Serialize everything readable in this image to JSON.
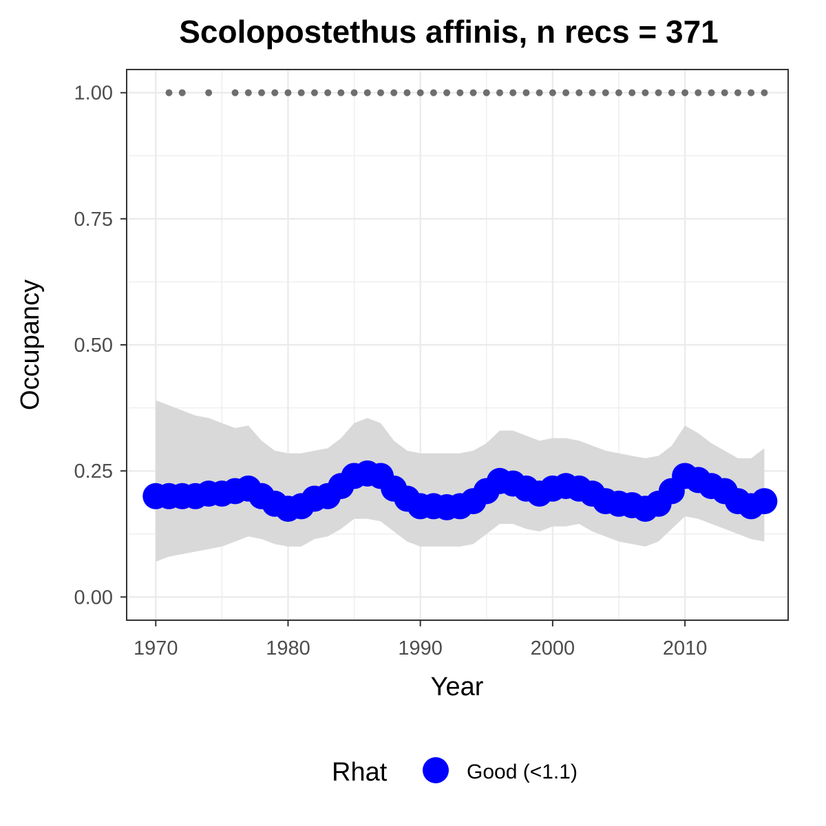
{
  "chart_data": {
    "type": "line",
    "title": "Scolopostethus affinis, n recs = 371",
    "xlabel": "Year",
    "ylabel": "Occupancy",
    "xlim": [
      1967.8,
      2017.8
    ],
    "ylim": [
      -0.046,
      1.046
    ],
    "x_ticks": [
      1970,
      1980,
      1990,
      2000,
      2010
    ],
    "x_tick_labels": [
      "1970",
      "1980",
      "1990",
      "2000",
      "2010"
    ],
    "y_ticks": [
      0,
      0.25,
      0.5,
      0.75,
      1.0
    ],
    "y_tick_labels": [
      "0.00",
      "0.25",
      "0.50",
      "0.75",
      "1.00"
    ],
    "grid": true,
    "legend": {
      "position": "bottom",
      "title": "Rhat",
      "entries": [
        {
          "label": "Good (<1.1)",
          "color": "#0000ff"
        }
      ]
    },
    "colors": {
      "series": "#0000ff",
      "ribbon": "#d9d9d9",
      "record_points": "#6e6e6e",
      "grid": "#ebebeb",
      "panel_border": "#333333"
    },
    "x": [
      1970,
      1971,
      1972,
      1973,
      1974,
      1975,
      1976,
      1977,
      1978,
      1979,
      1980,
      1981,
      1982,
      1983,
      1984,
      1985,
      1986,
      1987,
      1988,
      1989,
      1990,
      1991,
      1992,
      1993,
      1994,
      1995,
      1996,
      1997,
      1998,
      1999,
      2000,
      2001,
      2002,
      2003,
      2004,
      2005,
      2006,
      2007,
      2008,
      2009,
      2010,
      2011,
      2012,
      2013,
      2014,
      2015,
      2016
    ],
    "series": [
      {
        "name": "Good (<1.1)",
        "values": [
          0.2,
          0.2,
          0.2,
          0.2,
          0.205,
          0.205,
          0.21,
          0.215,
          0.2,
          0.185,
          0.175,
          0.18,
          0.195,
          0.2,
          0.22,
          0.24,
          0.245,
          0.24,
          0.215,
          0.195,
          0.18,
          0.18,
          0.178,
          0.18,
          0.19,
          0.21,
          0.23,
          0.225,
          0.215,
          0.205,
          0.215,
          0.22,
          0.215,
          0.205,
          0.19,
          0.185,
          0.182,
          0.175,
          0.185,
          0.21,
          0.24,
          0.232,
          0.22,
          0.21,
          0.19,
          0.18,
          0.19
        ]
      }
    ],
    "ribbon": {
      "upper": [
        0.39,
        0.38,
        0.37,
        0.36,
        0.355,
        0.345,
        0.335,
        0.34,
        0.31,
        0.29,
        0.285,
        0.285,
        0.29,
        0.295,
        0.315,
        0.345,
        0.355,
        0.345,
        0.31,
        0.29,
        0.285,
        0.285,
        0.285,
        0.285,
        0.29,
        0.305,
        0.33,
        0.33,
        0.32,
        0.31,
        0.315,
        0.315,
        0.31,
        0.3,
        0.29,
        0.285,
        0.28,
        0.275,
        0.28,
        0.3,
        0.34,
        0.325,
        0.305,
        0.29,
        0.275,
        0.275,
        0.295
      ],
      "lower": [
        0.07,
        0.08,
        0.085,
        0.09,
        0.095,
        0.1,
        0.11,
        0.12,
        0.115,
        0.105,
        0.1,
        0.1,
        0.115,
        0.12,
        0.135,
        0.155,
        0.155,
        0.15,
        0.13,
        0.11,
        0.1,
        0.1,
        0.1,
        0.1,
        0.105,
        0.125,
        0.145,
        0.145,
        0.135,
        0.13,
        0.14,
        0.14,
        0.145,
        0.13,
        0.12,
        0.11,
        0.105,
        0.1,
        0.11,
        0.135,
        0.16,
        0.155,
        0.145,
        0.135,
        0.125,
        0.115,
        0.11
      ]
    },
    "record_years": [
      1971,
      1972,
      1974,
      1976,
      1977,
      1978,
      1979,
      1980,
      1981,
      1982,
      1983,
      1984,
      1985,
      1986,
      1987,
      1988,
      1989,
      1990,
      1991,
      1992,
      1993,
      1994,
      1995,
      1996,
      1997,
      1998,
      1999,
      2000,
      2001,
      2002,
      2003,
      2004,
      2005,
      2006,
      2007,
      2008,
      2009,
      2010,
      2011,
      2012,
      2013,
      2014,
      2015,
      2016
    ],
    "record_value": 1.0
  }
}
